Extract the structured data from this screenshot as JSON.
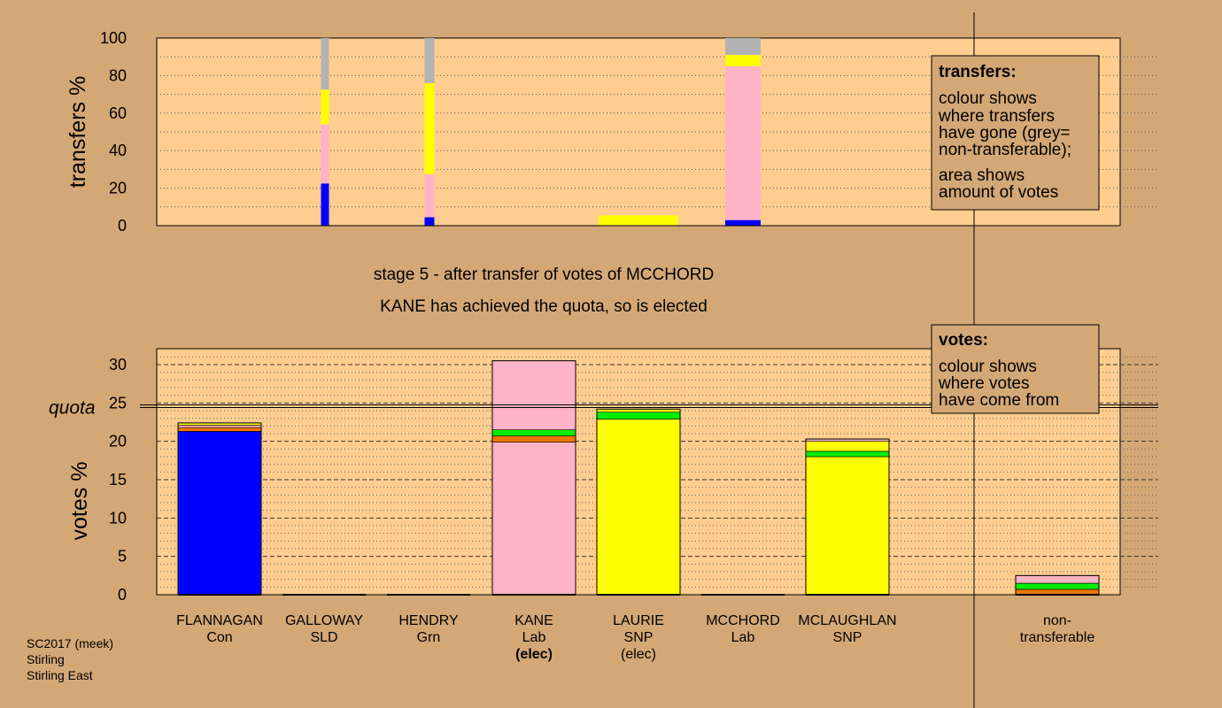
{
  "stage_line": "stage 5 - after transfer of votes of MCCHORD",
  "elected_line": "KANE has achieved the quota, so is elected",
  "footer": [
    "SC2017 (meek)",
    "Stirling",
    "Stirling East"
  ],
  "legend_transfers": {
    "title": "transfers:",
    "lines": [
      "colour shows",
      "where transfers",
      "have gone (grey=",
      "non-transferable);",
      "area shows",
      "amount of votes"
    ]
  },
  "legend_votes": {
    "title": "votes:",
    "lines": [
      "colour shows",
      "where votes",
      "have come from"
    ]
  },
  "colors": {
    "panel": "#fecd8f",
    "background": "#d4a876",
    "Con": "#0000ff",
    "Lab": "#ffb3c6",
    "SNP": "#ffff00",
    "Grn": "#00ee00",
    "SLD": "#ee7600",
    "nontransferable": "#b3b3b3"
  },
  "chart_data": [
    {
      "type": "bar",
      "stacked": true,
      "ylabel": "transfers %",
      "ylim": [
        0,
        100
      ],
      "yticks": [
        0,
        20,
        40,
        60,
        80,
        100
      ],
      "grid": "dotted",
      "bars": [
        {
          "source": "GALLOWAY",
          "width_share": 0.09,
          "segments": [
            {
              "party": "Con",
              "value": 22.5
            },
            {
              "party": "Lab",
              "value": 31.5
            },
            {
              "party": "SNP",
              "value": 18.5
            },
            {
              "party": "nontransferable",
              "value": 27.5
            }
          ]
        },
        {
          "source": "HENDRY",
          "width_share": 0.11,
          "segments": [
            {
              "party": "Con",
              "value": 4.5
            },
            {
              "party": "Lab",
              "value": 23
            },
            {
              "party": "SNP",
              "value": 48.5
            },
            {
              "party": "nontransferable",
              "value": 24
            }
          ]
        },
        {
          "source": "KANE",
          "width_share": 0.9,
          "segments": [
            {
              "party": "SNP",
              "value": 5.5
            }
          ]
        },
        {
          "source": "MCCHORD",
          "width_share": 0.4,
          "segments": [
            {
              "party": "Con",
              "value": 3
            },
            {
              "party": "Lab",
              "value": 82
            },
            {
              "party": "SNP",
              "value": 6
            },
            {
              "party": "nontransferable",
              "value": 9
            }
          ]
        }
      ]
    },
    {
      "type": "bar",
      "stacked": true,
      "ylabel": "votes %",
      "ylim": [
        0,
        32
      ],
      "yticks": [
        0,
        5,
        10,
        15,
        20,
        25,
        30
      ],
      "quota": 24.4,
      "quota_label": "quota",
      "grid": "dashed",
      "categories": [
        {
          "name": "FLANNAGAN",
          "party": "Con",
          "status": "",
          "segments": [
            {
              "party": "Con",
              "value": 21.3
            },
            {
              "party": "SLD",
              "value": 0.5
            },
            {
              "party": "Lab",
              "value": 0.3
            },
            {
              "party": "SNP",
              "value": 0.3
            }
          ]
        },
        {
          "name": "GALLOWAY",
          "party": "SLD",
          "status": "",
          "segments": []
        },
        {
          "name": "HENDRY",
          "party": "Grn",
          "status": "",
          "segments": []
        },
        {
          "name": "KANE",
          "party": "Lab",
          "status": "(elec)",
          "status_bold": true,
          "segments": [
            {
              "party": "Lab",
              "value": 19.9
            },
            {
              "party": "SLD",
              "value": 0.8
            },
            {
              "party": "Grn",
              "value": 0.8
            },
            {
              "party": "Lab",
              "value": 9.0
            }
          ]
        },
        {
          "name": "LAURIE",
          "party": "SNP",
          "status": "(elec)",
          "status_bold": false,
          "segments": [
            {
              "party": "SNP",
              "value": 22.9
            },
            {
              "party": "Grn",
              "value": 0.9
            },
            {
              "party": "SNP",
              "value": 0.4
            }
          ]
        },
        {
          "name": "MCCHORD",
          "party": "Lab",
          "status": "",
          "segments": []
        },
        {
          "name": "MCLAUGHLAN",
          "party": "SNP",
          "status": "",
          "segments": [
            {
              "party": "SNP",
              "value": 18.0
            },
            {
              "party": "Grn",
              "value": 0.7
            },
            {
              "party": "SNP",
              "value": 1.3
            },
            {
              "party": "Lab",
              "value": 0.3
            }
          ]
        },
        {
          "name": "non-\ntransferable",
          "party": "",
          "status": "",
          "segments": [
            {
              "party": "SLD",
              "value": 0.7
            },
            {
              "party": "Grn",
              "value": 0.8
            },
            {
              "party": "Lab",
              "value": 1.0
            }
          ]
        }
      ]
    }
  ]
}
